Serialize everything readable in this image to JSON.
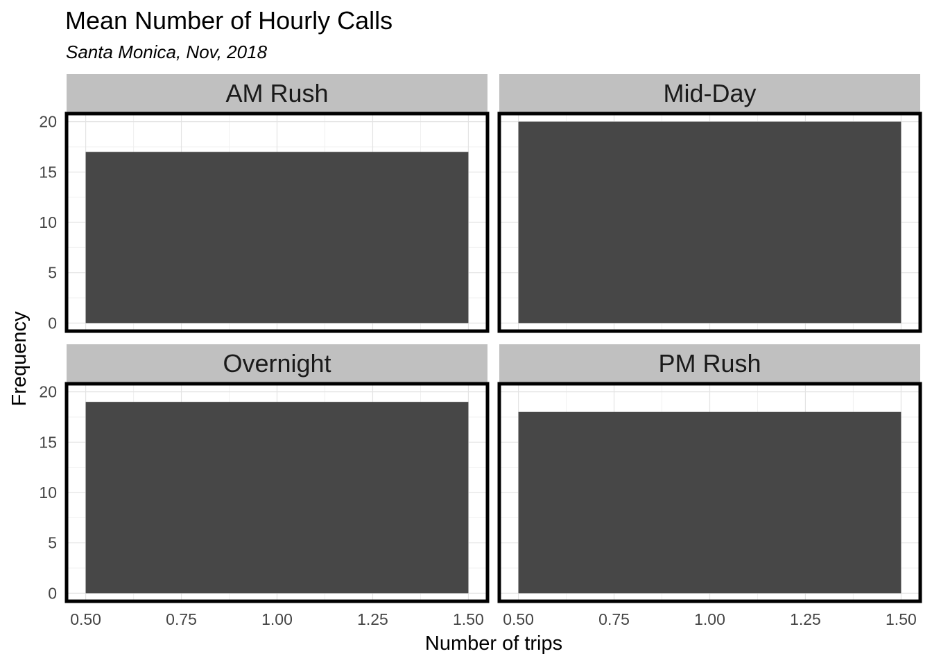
{
  "chart_data": {
    "type": "bar",
    "title": "Mean Number of Hourly Calls",
    "subtitle": "Santa Monica, Nov, 2018",
    "xlabel": "Number of trips",
    "ylabel": "Frequency",
    "xlim": [
      0.45,
      1.55
    ],
    "ylim": [
      -0.8,
      20.8
    ],
    "x_ticks": [
      "0.50",
      "0.75",
      "1.00",
      "1.25",
      "1.50"
    ],
    "y_ticks": [
      "0",
      "5",
      "10",
      "15",
      "20"
    ],
    "grid": true,
    "bar_color": "#474747",
    "facets": [
      {
        "name": "AM Rush",
        "bins": [
          {
            "x0": 0.5,
            "x1": 1.5,
            "value": 17
          }
        ]
      },
      {
        "name": "Mid-Day",
        "bins": [
          {
            "x0": 0.5,
            "x1": 1.5,
            "value": 20
          }
        ]
      },
      {
        "name": "Overnight",
        "bins": [
          {
            "x0": 0.5,
            "x1": 1.5,
            "value": 19
          }
        ]
      },
      {
        "name": "PM Rush",
        "bins": [
          {
            "x0": 0.5,
            "x1": 1.5,
            "value": 18
          }
        ]
      }
    ]
  },
  "colors": {
    "strip_background": "#c0c0c0",
    "panel_border": "#000000",
    "grid_major": "#e3e3e3",
    "grid_minor": "#f0f0f0"
  }
}
